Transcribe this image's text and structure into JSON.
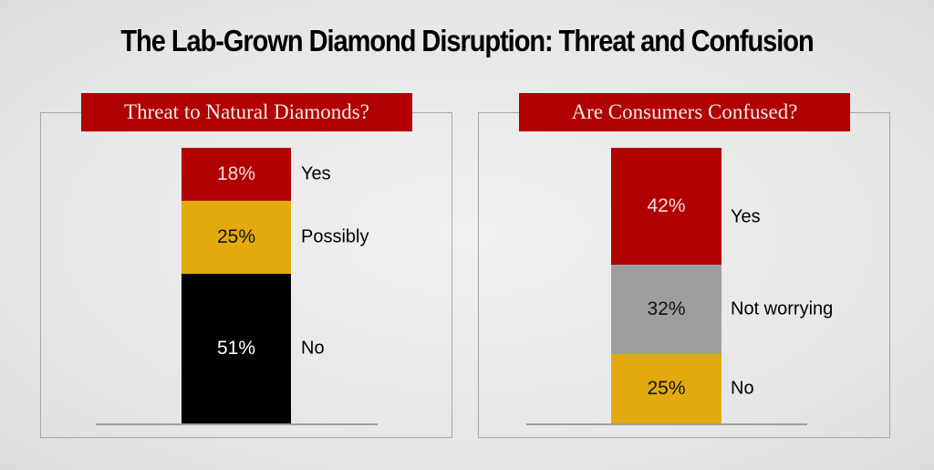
{
  "title": "The Lab-Grown Diamond Disruption: Threat and Confusion",
  "chart_data": [
    {
      "type": "bar",
      "stacked": true,
      "title": "Threat to Natural Diamonds?",
      "categories": [
        "Yes",
        "Possibly",
        "No"
      ],
      "values": [
        18,
        25,
        51
      ],
      "value_labels": [
        "18%",
        "25%",
        "51%"
      ],
      "colors": [
        "#b10000",
        "#e2aa0c",
        "#000000"
      ],
      "text_colors": [
        "#f0dede",
        "#111111",
        "#ffffff"
      ]
    },
    {
      "type": "bar",
      "stacked": true,
      "title": "Are Consumers Confused?",
      "categories": [
        "Yes",
        "Not worrying",
        "No"
      ],
      "values": [
        42,
        32,
        25
      ],
      "value_labels": [
        "42%",
        "32%",
        "25%"
      ],
      "colors": [
        "#b10000",
        "#9e9e9e",
        "#e2aa0c"
      ],
      "text_colors": [
        "#f0dede",
        "#111111",
        "#111111"
      ]
    }
  ]
}
